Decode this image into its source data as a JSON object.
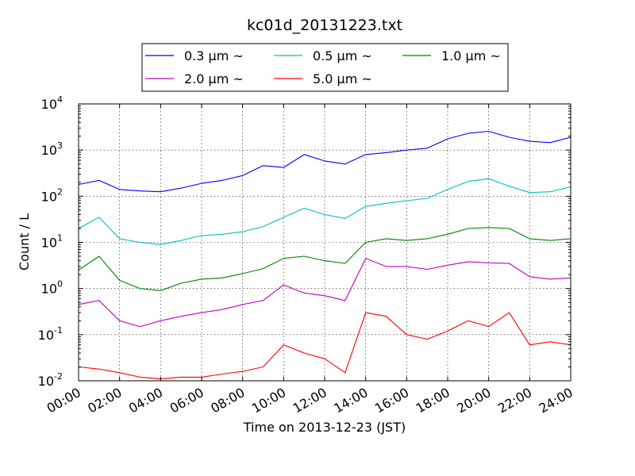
{
  "chart_data": {
    "type": "line",
    "title": "kc01d_20131223.txt",
    "xlabel": "Time on 2013-12-23 (JST)",
    "ylabel": "Count / L",
    "y_scale": "log",
    "ylim": [
      0.01,
      10000
    ],
    "xlim": [
      "00:00",
      "24:00"
    ],
    "x_tick_labels": [
      "00:00",
      "02:00",
      "04:00",
      "06:00",
      "08:00",
      "10:00",
      "12:00",
      "14:00",
      "16:00",
      "18:00",
      "20:00",
      "22:00",
      "24:00"
    ],
    "y_ticks": [
      {
        "base": "10",
        "exp": "-2"
      },
      {
        "base": "10",
        "exp": "-1"
      },
      {
        "base": "10",
        "exp": "0"
      },
      {
        "base": "10",
        "exp": "1"
      },
      {
        "base": "10",
        "exp": "2"
      },
      {
        "base": "10",
        "exp": "3"
      },
      {
        "base": "10",
        "exp": "4"
      }
    ],
    "grid": true,
    "legend_position": "top-center",
    "x": [
      "00:00",
      "01:00",
      "02:00",
      "03:00",
      "04:00",
      "05:00",
      "06:00",
      "07:00",
      "08:00",
      "09:00",
      "10:00",
      "11:00",
      "12:00",
      "13:00",
      "14:00",
      "15:00",
      "16:00",
      "17:00",
      "18:00",
      "19:00",
      "20:00",
      "21:00",
      "22:00",
      "23:00",
      "24:00"
    ],
    "series": [
      {
        "name": "0.3 µm ~",
        "color": "#0000ff",
        "values": [
          180,
          220,
          140,
          130,
          125,
          150,
          190,
          220,
          280,
          460,
          420,
          800,
          580,
          500,
          800,
          880,
          1000,
          1100,
          1750,
          2300,
          2550,
          1900,
          1550,
          1450,
          1900
        ]
      },
      {
        "name": "0.5 µm ~",
        "color": "#00bfbf",
        "values": [
          20,
          35,
          12,
          10,
          9,
          11,
          14,
          15,
          17,
          22,
          35,
          55,
          40,
          33,
          60,
          70,
          80,
          90,
          140,
          210,
          240,
          165,
          120,
          125,
          160
        ]
      },
      {
        "name": "1.0 µm ~",
        "color": "#008000",
        "values": [
          2.5,
          5,
          1.5,
          1.0,
          0.9,
          1.3,
          1.6,
          1.7,
          2.1,
          2.7,
          4.5,
          5.0,
          4.0,
          3.5,
          10,
          12,
          11,
          12,
          15,
          20,
          21,
          20,
          12,
          11,
          12
        ]
      },
      {
        "name": "2.0 µm ~",
        "color": "#bf00bf",
        "values": [
          0.45,
          0.55,
          0.2,
          0.15,
          0.2,
          0.25,
          0.3,
          0.35,
          0.45,
          0.55,
          1.2,
          0.8,
          0.7,
          0.55,
          4.5,
          3.0,
          3.0,
          2.6,
          3.2,
          3.8,
          3.6,
          3.5,
          1.8,
          1.6,
          1.7
        ]
      },
      {
        "name": "5.0 µm ~",
        "color": "#ff0000",
        "values": [
          0.02,
          0.018,
          0.015,
          0.012,
          0.011,
          0.012,
          0.012,
          0.014,
          0.016,
          0.02,
          0.06,
          0.04,
          0.03,
          0.015,
          0.3,
          0.25,
          0.1,
          0.08,
          0.12,
          0.2,
          0.15,
          0.3,
          0.06,
          0.07,
          0.06
        ]
      }
    ]
  }
}
